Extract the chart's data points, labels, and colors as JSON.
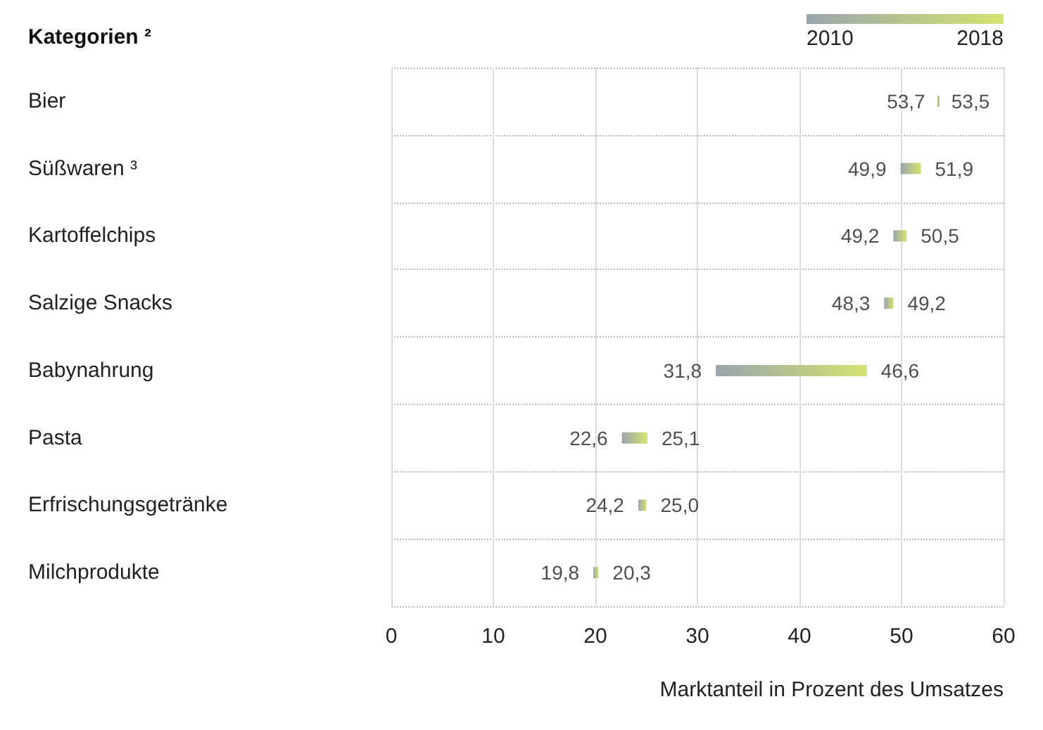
{
  "chart_data": {
    "type": "bar",
    "orientation": "horizontal",
    "ylabel": "Kategorien ²",
    "xlabel": "Marktanteil in Prozent des Umsatzes",
    "categories": [
      "Bier",
      "Süßwaren ³",
      "Kartoffelchips",
      "Salzige Snacks",
      "Babynahrung",
      "Pasta",
      "Erfrischungsgetränke",
      "Milchprodukte"
    ],
    "series": [
      {
        "color": "#d3e36f",
        "base": [
          53.7,
          49.9,
          49.2,
          48.3,
          31.8,
          22.6,
          24.2,
          19.8
        ],
        "values": [
          -0.2,
          2.0,
          1.3,
          0.9,
          14.8,
          2.5,
          0.8,
          0.5
        ]
      }
    ],
    "xlim": [
      0,
      60
    ],
    "xticks": [
      0,
      10,
      20,
      30,
      40,
      50,
      60
    ],
    "grid": true,
    "annotations": [
      "2010",
      "2018",
      {
        "text": "53,7",
        "x": 53.7,
        "y": "Bier"
      },
      {
        "text": "53,5",
        "x": 53.5,
        "y": "Bier"
      },
      {
        "text": "49,9",
        "x": 49.9,
        "y": "Süßwaren ³"
      },
      {
        "text": "51,9",
        "x": 51.9,
        "y": "Süßwaren ³"
      },
      {
        "text": "49,2",
        "x": 49.2,
        "y": "Kartoffelchips"
      },
      {
        "text": "50,5",
        "x": 50.5,
        "y": "Kartoffelchips"
      },
      {
        "text": "48,3",
        "x": 48.3,
        "y": "Salzige Snacks"
      },
      {
        "text": "49,2",
        "x": 49.2,
        "y": "Salzige Snacks"
      },
      {
        "text": "31,8",
        "x": 31.8,
        "y": "Babynahrung"
      },
      {
        "text": "46,6",
        "x": 46.6,
        "y": "Babynahrung"
      },
      {
        "text": "22,6",
        "x": 22.6,
        "y": "Pasta"
      },
      {
        "text": "25,1",
        "x": 25.1,
        "y": "Pasta"
      },
      {
        "text": "24,2",
        "x": 24.2,
        "y": "Erfrischungsgetränke"
      },
      {
        "text": "25,0",
        "x": 25.0,
        "y": "Erfrischungsgetränke"
      },
      {
        "text": "19,8",
        "x": 19.8,
        "y": "Milchprodukte"
      },
      {
        "text": "20,3",
        "x": 20.3,
        "y": "Milchprodukte"
      }
    ]
  }
}
